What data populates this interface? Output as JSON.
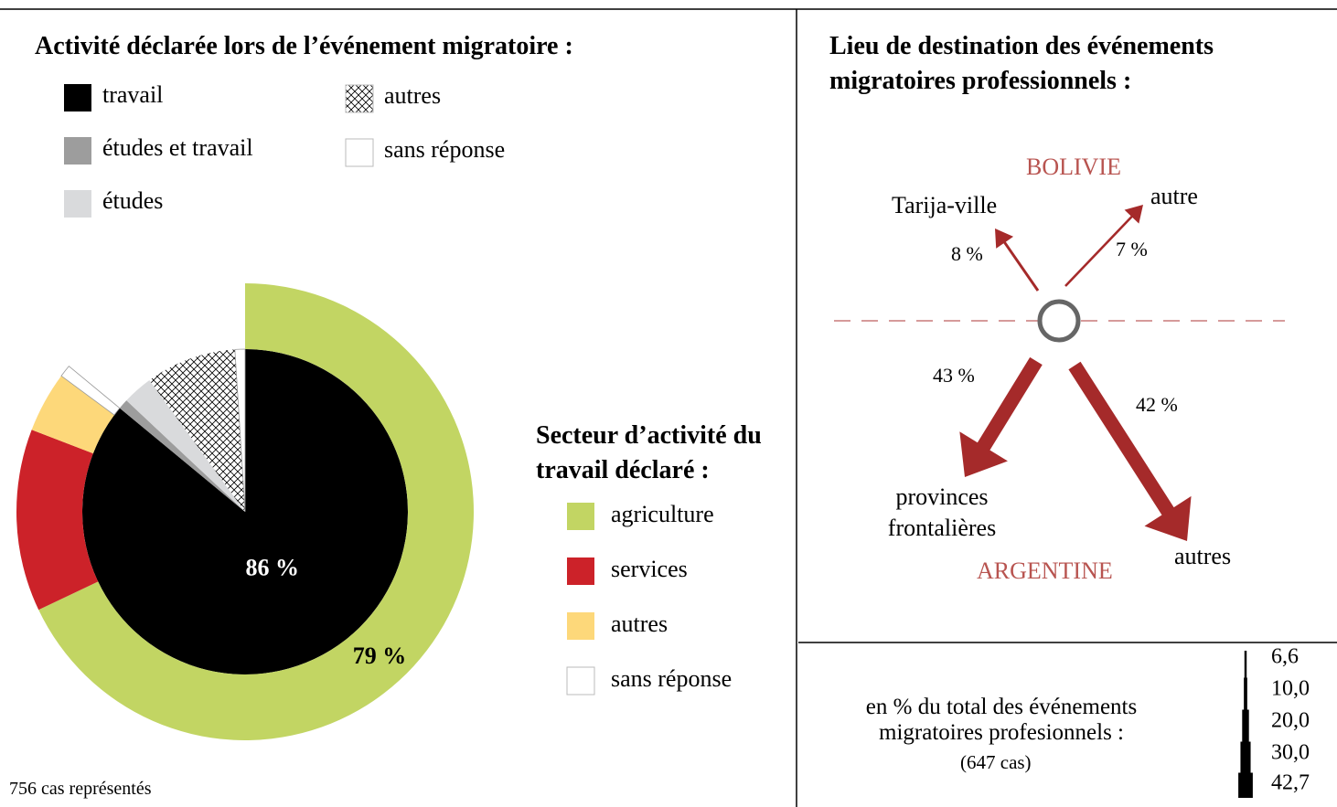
{
  "chart_data": [
    {
      "type": "sunburst",
      "title": "Activité déclarée lors de l’événement migratoire :",
      "categories": [
        "travail",
        "études et travail",
        "études",
        "autres",
        "sans réponse"
      ],
      "values": [
        86,
        1,
        3,
        9,
        1
      ],
      "value_labels": [
        "86 %",
        null,
        null,
        null,
        null
      ],
      "colors": [
        "#000000",
        "#9d9d9d",
        "#d9dadc",
        "hatch",
        "#ffffff"
      ],
      "ring": {
        "title": "Secteur d’activité du travail déclaré :",
        "categories": [
          "agriculture",
          "services",
          "autres",
          "sans réponse"
        ],
        "values": [
          79,
          15,
          5,
          1
        ],
        "value_labels": [
          "79 %",
          null,
          null,
          null
        ],
        "colors": [
          "#c2d563",
          "#cc2229",
          "#fdd87a",
          "#ffffff"
        ]
      },
      "note": "756 cas représentés"
    },
    {
      "type": "flow",
      "title": "Lieu de destination des événements migratoires professionnels :",
      "regions": [
        "BOLIVIE",
        "ARGENTINE"
      ],
      "categories": [
        "Tarija-ville",
        "autre",
        "provinces frontalières",
        "autres"
      ],
      "values": [
        8,
        7,
        43,
        42
      ],
      "value_labels": [
        "8 %",
        "7 %",
        "43 %",
        "42 %"
      ],
      "color": "#a52a2a",
      "scale": {
        "label": "en % du total des événements migratoires profesionnels :",
        "note": "(647 cas)",
        "ticks": [
          {
            "value": 6.6,
            "label": "6,6"
          },
          {
            "value": 10.0,
            "label": "10,0"
          },
          {
            "value": 20.0,
            "label": "20,0"
          },
          {
            "value": 30.0,
            "label": "30,0"
          },
          {
            "value": 42.7,
            "label": "42,7"
          }
        ]
      }
    }
  ]
}
